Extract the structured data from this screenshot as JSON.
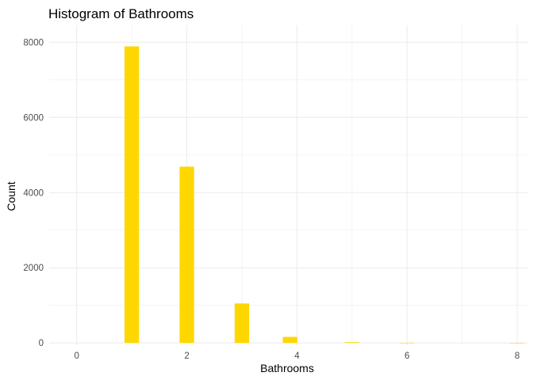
{
  "chart_data": {
    "type": "bar",
    "title": "Histogram of Bathrooms",
    "xlabel": "Bathrooms",
    "ylabel": "Count",
    "bar_color": "#FFD700",
    "xlim": [
      -0.5,
      8.2
    ],
    "ylim": [
      -60,
      8450
    ],
    "x_ticks": [
      0,
      2,
      4,
      6,
      8
    ],
    "y_ticks": [
      0,
      2000,
      4000,
      6000,
      8000
    ],
    "bins": [
      {
        "x": 1.0,
        "count": 7890
      },
      {
        "x": 2.0,
        "count": 4690
      },
      {
        "x": 3.0,
        "count": 1050
      },
      {
        "x": 3.875,
        "count": 160
      },
      {
        "x": 5.0,
        "count": 20
      },
      {
        "x": 6.0,
        "count": 4
      },
      {
        "x": 8.0,
        "count": 2
      }
    ],
    "grid": true,
    "legend": "none"
  }
}
